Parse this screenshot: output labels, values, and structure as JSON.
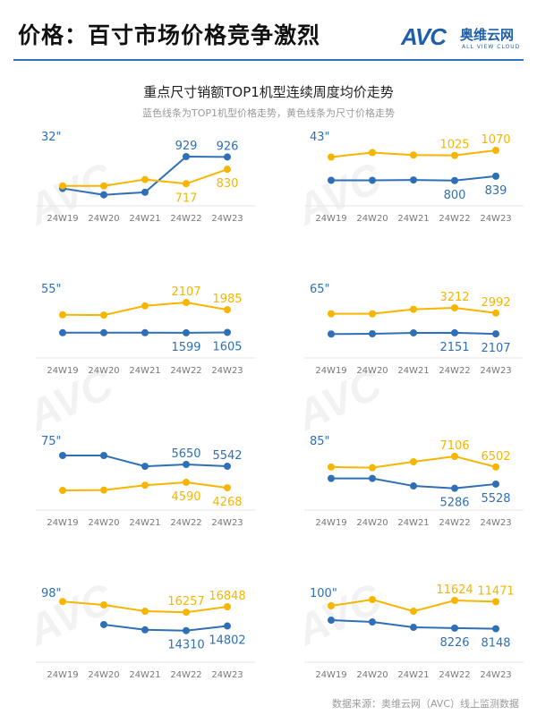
{
  "header": {
    "title": "价格：百寸市场价格竞争激烈",
    "logo_text": "AVC",
    "logo_cn": "奥维云网",
    "logo_en": "ALL VIEW CLOUD"
  },
  "subtitle": "重点尺寸销额TOP1机型连续周度均价走势",
  "note": "蓝色线条为TOP1机型价格走势，黄色线条为尺寸价格走势",
  "source": "数据来源：奥维云网（AVC）线上监测数据",
  "colors": {
    "top1": "#2e6fb7",
    "size_avg": "#f7b500",
    "axis": "#e6e6e6",
    "tick": "#777777"
  },
  "watermark": "AVC 奥维云网 ALL VIEW CLOUD",
  "chart_data": [
    {
      "type": "line",
      "label": "32\"",
      "categories": [
        "24W19",
        "24W20",
        "24W21",
        "24W22",
        "24W23"
      ],
      "ylim": [
        579,
        1034
      ],
      "series": [
        {
          "color": "top1",
          "values": [
            680,
            630,
            650,
            929,
            926
          ],
          "labels": [
            null,
            null,
            null,
            "929",
            "926"
          ],
          "label_pos": "above"
        },
        {
          "color": "size_avg",
          "values": [
            700,
            700,
            750,
            717,
            830
          ],
          "labels": [
            null,
            null,
            null,
            "717",
            "830"
          ],
          "label_pos": "below"
        }
      ]
    },
    {
      "type": "line",
      "label": "43\"",
      "categories": [
        "24W19",
        "24W20",
        "24W21",
        "24W22",
        "24W23"
      ],
      "ylim": [
        614,
        1134
      ],
      "series": [
        {
          "color": "top1",
          "values": [
            802,
            802,
            805,
            800,
            839
          ],
          "labels": [
            null,
            null,
            null,
            "800",
            "839"
          ],
          "label_pos": "below"
        },
        {
          "color": "size_avg",
          "values": [
            1010,
            1050,
            1028,
            1025,
            1070
          ],
          "labels": [
            null,
            null,
            null,
            "1025",
            "1070"
          ],
          "label_pos": "above"
        }
      ]
    },
    {
      "type": "line",
      "label": "55\"",
      "categories": [
        "24W19",
        "24W20",
        "24W21",
        "24W22",
        "24W23"
      ],
      "ylim": [
        1252,
        2227
      ],
      "series": [
        {
          "color": "top1",
          "values": [
            1600,
            1600,
            1600,
            1599,
            1605
          ],
          "labels": [
            null,
            null,
            null,
            "1599",
            "1605"
          ],
          "label_pos": "below"
        },
        {
          "color": "size_avg",
          "values": [
            1900,
            1895,
            2050,
            2107,
            1985
          ],
          "labels": [
            null,
            null,
            null,
            "2107",
            "1985"
          ],
          "label_pos": "above"
        }
      ]
    },
    {
      "type": "line",
      "label": "65\"",
      "categories": [
        "24W19",
        "24W20",
        "24W21",
        "24W22",
        "24W23"
      ],
      "ylim": [
        1274,
        3744
      ],
      "series": [
        {
          "color": "top1",
          "values": [
            2100,
            2110,
            2150,
            2151,
            2107
          ],
          "labels": [
            null,
            null,
            null,
            "2151",
            "2107"
          ],
          "label_pos": "below"
        },
        {
          "color": "size_avg",
          "values": [
            2960,
            2960,
            3150,
            3212,
            2992
          ],
          "labels": [
            null,
            null,
            null,
            "3212",
            "2992"
          ],
          "label_pos": "above"
        }
      ]
    },
    {
      "type": "line",
      "label": "75\"",
      "categories": [
        "24W19",
        "24W20",
        "24W21",
        "24W22",
        "24W23"
      ],
      "ylim": [
        3212,
        6657
      ],
      "series": [
        {
          "color": "top1",
          "values": [
            6180,
            6180,
            5540,
            5650,
            5542
          ],
          "labels": [
            null,
            null,
            null,
            "5650",
            "5542"
          ],
          "label_pos": "above"
        },
        {
          "color": "size_avg",
          "values": [
            4110,
            4130,
            4420,
            4590,
            4268
          ],
          "labels": [
            null,
            null,
            null,
            "4590",
            "4268"
          ],
          "label_pos": "below"
        }
      ]
    },
    {
      "type": "line",
      "label": "85\"",
      "categories": [
        "24W19",
        "24W20",
        "24W21",
        "24W22",
        "24W23"
      ],
      "ylim": [
        4301,
        7616
      ],
      "series": [
        {
          "color": "top1",
          "values": [
            5850,
            5850,
            5420,
            5286,
            5528
          ],
          "labels": [
            null,
            null,
            null,
            "5286",
            "5528"
          ],
          "label_pos": "below"
        },
        {
          "color": "size_avg",
          "values": [
            6500,
            6460,
            6800,
            7106,
            6502
          ],
          "labels": [
            null,
            null,
            null,
            "7106",
            "6502"
          ],
          "label_pos": "above"
        }
      ]
    },
    {
      "type": "line",
      "label": "98\"",
      "categories": [
        "24W19",
        "24W20",
        "24W21",
        "24W22",
        "24W23"
      ],
      "ylim": [
        11433,
        17608
      ],
      "series": [
        {
          "color": "top1",
          "values": [
            null,
            14950,
            14400,
            14310,
            14802
          ],
          "labels": [
            null,
            null,
            null,
            "14310",
            "14802"
          ],
          "label_pos": "below"
        },
        {
          "color": "size_avg",
          "values": [
            17400,
            17040,
            16370,
            16257,
            16848
          ],
          "labels": [
            null,
            null,
            null,
            "16257",
            "16848"
          ],
          "label_pos": "above"
        }
      ]
    },
    {
      "type": "line",
      "label": "100\"",
      "categories": [
        "24W19",
        "24W20",
        "24W21",
        "24W22",
        "24W23"
      ],
      "ylim": [
        4584,
        11734
      ],
      "series": [
        {
          "color": "top1",
          "values": [
            9200,
            8980,
            8320,
            8226,
            8148
          ],
          "labels": [
            null,
            null,
            null,
            "8226",
            "8148"
          ],
          "label_pos": "below"
        },
        {
          "color": "size_avg",
          "values": [
            10964,
            11734,
            10300,
            11624,
            11471
          ],
          "labels": [
            null,
            null,
            null,
            "11624",
            "11471"
          ],
          "label_pos": "above"
        }
      ]
    }
  ]
}
